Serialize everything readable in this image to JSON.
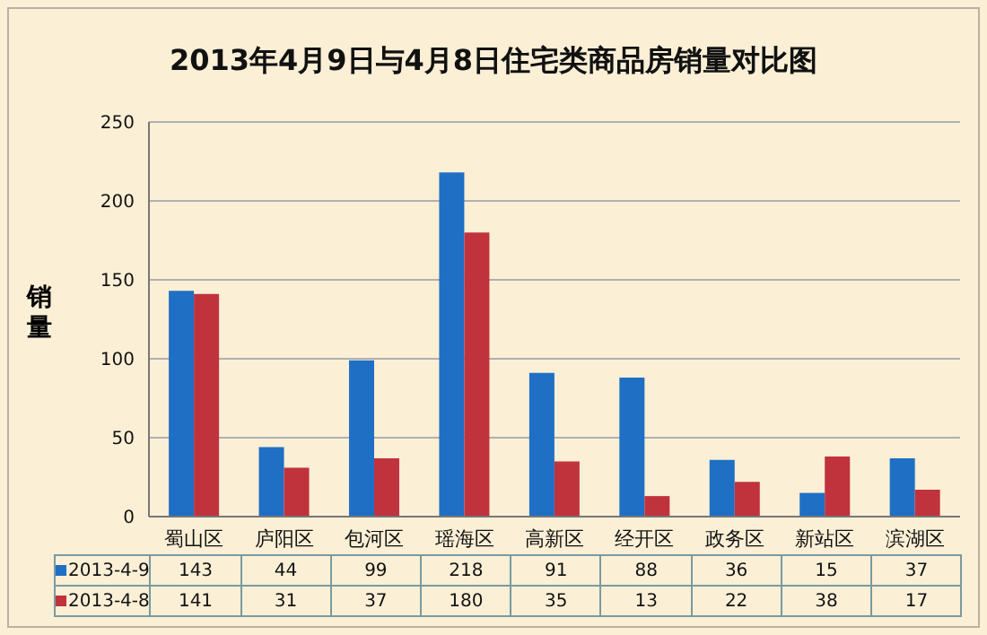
{
  "chart_data": {
    "type": "bar",
    "title": "2013年4月9日与4月8日住宅类商品房销量对比图",
    "ylabel": "销量",
    "categories": [
      "蜀山区",
      "庐阳区",
      "包河区",
      "瑶海区",
      "高新区",
      "经开区",
      "政务区",
      "新站区",
      "滨湖区"
    ],
    "series": [
      {
        "name": "2013-4-9",
        "color": "#1f6fc5",
        "values": [
          143,
          44,
          99,
          218,
          91,
          88,
          36,
          15,
          37
        ]
      },
      {
        "name": "2013-4-8",
        "color": "#c0333d",
        "values": [
          141,
          31,
          37,
          180,
          35,
          13,
          22,
          38,
          17
        ]
      }
    ],
    "ylim": [
      0,
      250
    ],
    "yticks": [
      0,
      50,
      100,
      150,
      200,
      250
    ],
    "grid": "y",
    "legend": "bottom",
    "data_labels": true
  }
}
